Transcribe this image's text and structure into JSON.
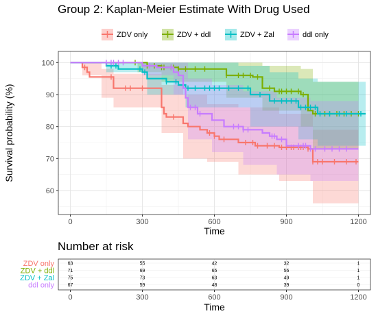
{
  "title": "Group 2: Kaplan-Meier Estimate With Drug Used",
  "risk_title": "Number at risk",
  "chart_data": {
    "type": "line",
    "title": "Group 2: Kaplan-Meier Estimate With Drug Used",
    "xlabel": "Time",
    "ylabel": "Survival probability (%)",
    "xlim": [
      -50,
      1250
    ],
    "ylim": [
      52.5,
      103.5
    ],
    "xticks": [
      0,
      300,
      600,
      900,
      1200
    ],
    "yticks": [
      60,
      70,
      80,
      90,
      100
    ],
    "grid": true,
    "legend_position": "top",
    "series": [
      {
        "name": "ZDV only",
        "color": "#F8766D",
        "steps": [
          [
            0,
            100
          ],
          [
            50,
            98.5
          ],
          [
            65,
            98.5
          ],
          [
            70,
            97
          ],
          [
            80,
            95.5
          ],
          [
            130,
            95.5
          ],
          [
            180,
            92
          ],
          [
            230,
            92
          ],
          [
            290,
            92
          ],
          [
            380,
            86
          ],
          [
            390,
            84
          ],
          [
            400,
            83
          ],
          [
            470,
            81
          ],
          [
            490,
            80
          ],
          [
            540,
            79
          ],
          [
            570,
            78
          ],
          [
            600,
            77
          ],
          [
            620,
            76
          ],
          [
            700,
            75
          ],
          [
            770,
            74
          ],
          [
            830,
            74
          ],
          [
            870,
            73.5
          ],
          [
            990,
            73
          ],
          [
            1010,
            69
          ],
          [
            1200,
            69
          ]
        ],
        "ci_upper": [
          [
            0,
            100
          ],
          [
            50,
            100
          ],
          [
            130,
            98
          ],
          [
            180,
            96.5
          ],
          [
            380,
            93
          ],
          [
            470,
            90
          ],
          [
            570,
            87
          ],
          [
            700,
            86
          ],
          [
            870,
            84
          ],
          [
            1010,
            79
          ],
          [
            1200,
            79
          ]
        ],
        "ci_lower": [
          [
            0,
            100
          ],
          [
            50,
            96
          ],
          [
            130,
            89
          ],
          [
            180,
            86
          ],
          [
            380,
            78
          ],
          [
            470,
            70
          ],
          [
            570,
            69
          ],
          [
            700,
            65
          ],
          [
            870,
            63
          ],
          [
            1010,
            56
          ],
          [
            1200,
            56
          ]
        ],
        "censor_times": [
          60,
          170,
          230,
          250,
          300,
          430,
          580,
          600,
          640,
          730,
          760,
          780,
          820,
          850,
          880,
          900,
          920,
          930,
          950,
          960,
          970,
          990,
          1010,
          1030,
          1050,
          1100,
          1150,
          1190
        ]
      },
      {
        "name": "ZDV + ddl",
        "color": "#7CAE00",
        "steps": [
          [
            0,
            100
          ],
          [
            280,
            100
          ],
          [
            320,
            99
          ],
          [
            380,
            98.5
          ],
          [
            450,
            98
          ],
          [
            590,
            98
          ],
          [
            650,
            96
          ],
          [
            760,
            95.5
          ],
          [
            800,
            92
          ],
          [
            850,
            91
          ],
          [
            960,
            90
          ],
          [
            990,
            85
          ],
          [
            1010,
            84
          ],
          [
            1200,
            84
          ]
        ],
        "ci_upper": [
          [
            0,
            100
          ],
          [
            650,
            100
          ],
          [
            800,
            99
          ],
          [
            960,
            98
          ],
          [
            1010,
            94
          ],
          [
            1200,
            94
          ]
        ],
        "ci_lower": [
          [
            0,
            100
          ],
          [
            280,
            97
          ],
          [
            380,
            94
          ],
          [
            650,
            89
          ],
          [
            800,
            85
          ],
          [
            960,
            80
          ],
          [
            1010,
            73
          ],
          [
            1200,
            73
          ]
        ],
        "censor_times": [
          270,
          320,
          350,
          380,
          390,
          420,
          430,
          450,
          480,
          520,
          560,
          650,
          700,
          720,
          750,
          780,
          830,
          870,
          880,
          900,
          920,
          950,
          970,
          1020,
          1060,
          1080,
          1110,
          1140,
          1170,
          1200
        ]
      },
      {
        "name": "ZDV + Zal",
        "color": "#00BFC4",
        "steps": [
          [
            0,
            100
          ],
          [
            150,
            99
          ],
          [
            200,
            98
          ],
          [
            300,
            97
          ],
          [
            320,
            95
          ],
          [
            400,
            94
          ],
          [
            450,
            93
          ],
          [
            480,
            92
          ],
          [
            700,
            92
          ],
          [
            750,
            90
          ],
          [
            830,
            88
          ],
          [
            950,
            86
          ],
          [
            1030,
            84
          ],
          [
            1230,
            84
          ]
        ],
        "ci_upper": [
          [
            0,
            100
          ],
          [
            400,
            100
          ],
          [
            700,
            99
          ],
          [
            830,
            97
          ],
          [
            950,
            95
          ],
          [
            1030,
            94
          ],
          [
            1230,
            94
          ]
        ],
        "ci_lower": [
          [
            0,
            100
          ],
          [
            150,
            97
          ],
          [
            320,
            90
          ],
          [
            480,
            86
          ],
          [
            750,
            80
          ],
          [
            950,
            76
          ],
          [
            1030,
            74
          ],
          [
            1230,
            74
          ]
        ],
        "censor_times": [
          170,
          190,
          290,
          310,
          400,
          440,
          490,
          520,
          560,
          580,
          600,
          620,
          660,
          700,
          740,
          790,
          850,
          880,
          900,
          920,
          940,
          960,
          980,
          1000,
          1020,
          1040,
          1080,
          1120,
          1150,
          1210
        ]
      },
      {
        "name": "ddl only",
        "color": "#C77CFF",
        "steps": [
          [
            0,
            100
          ],
          [
            290,
            100
          ],
          [
            300,
            99
          ],
          [
            360,
            98.5
          ],
          [
            430,
            97
          ],
          [
            450,
            96
          ],
          [
            470,
            92
          ],
          [
            480,
            89
          ],
          [
            490,
            86
          ],
          [
            530,
            84
          ],
          [
            570,
            84
          ],
          [
            590,
            82
          ],
          [
            640,
            80
          ],
          [
            720,
            79
          ],
          [
            800,
            78
          ],
          [
            830,
            77
          ],
          [
            860,
            76
          ],
          [
            900,
            74
          ],
          [
            1000,
            73
          ],
          [
            1200,
            73
          ]
        ],
        "ci_upper": [
          [
            0,
            100
          ],
          [
            450,
            100
          ],
          [
            490,
            95
          ],
          [
            590,
            93
          ],
          [
            720,
            91
          ],
          [
            860,
            89
          ],
          [
            1000,
            88
          ],
          [
            1200,
            88
          ]
        ],
        "ci_lower": [
          [
            0,
            100
          ],
          [
            300,
            96
          ],
          [
            430,
            90
          ],
          [
            490,
            76
          ],
          [
            590,
            72
          ],
          [
            720,
            68
          ],
          [
            860,
            65
          ],
          [
            1000,
            63
          ],
          [
            1200,
            63
          ]
        ],
        "censor_times": [
          150,
          170,
          180,
          200,
          220,
          330,
          420,
          500,
          520,
          540,
          680,
          700,
          720,
          740,
          840,
          850,
          880,
          950,
          970,
          980,
          1000,
          1020,
          1060,
          1090,
          1120,
          1150
        ]
      }
    ],
    "risk_table": {
      "xlabel": "Time",
      "times": [
        0,
        300,
        600,
        900,
        1200
      ],
      "rows": [
        {
          "name": "ZDV only",
          "color": "#F8766D",
          "counts": [
            "63",
            "55",
            "42",
            "32",
            "1"
          ]
        },
        {
          "name": "ZDV + ddl",
          "color": "#7CAE00",
          "counts": [
            "71",
            "69",
            "65",
            "56",
            "1"
          ]
        },
        {
          "name": "ZDV + Zal",
          "color": "#00BFC4",
          "counts": [
            "75",
            "73",
            "63",
            "49",
            "1"
          ]
        },
        {
          "name": "ddl only",
          "color": "#C77CFF",
          "counts": [
            "67",
            "59",
            "48",
            "39",
            "0"
          ]
        }
      ]
    }
  }
}
